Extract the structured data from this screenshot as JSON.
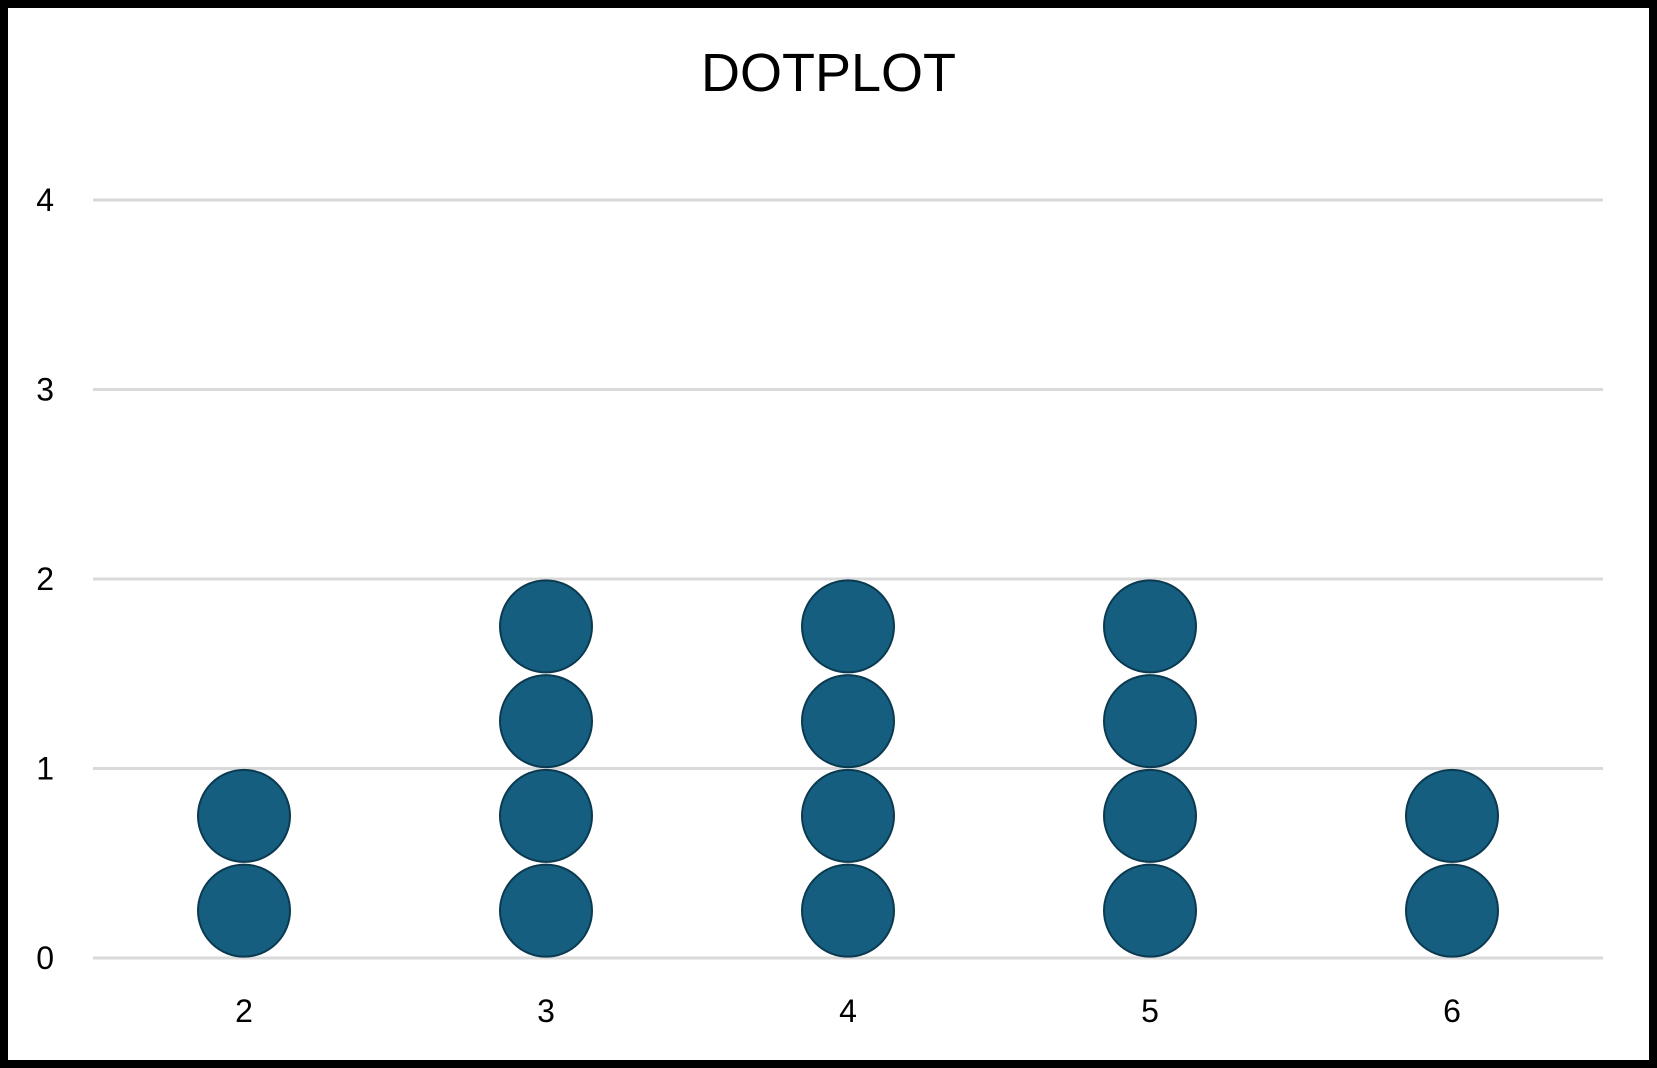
{
  "chart_data": {
    "type": "dotplot",
    "title": "DOTPLOT",
    "xlabel": "",
    "ylabel": "",
    "categories": [
      "2",
      "3",
      "4",
      "5",
      "6"
    ],
    "values": [
      2,
      4,
      4,
      4,
      2
    ],
    "ylim": [
      0,
      4
    ],
    "yticks": [
      "0",
      "1",
      "2",
      "3",
      "4"
    ],
    "grid": true,
    "colors": {
      "dot": "#155e80",
      "dot_edge": "#0b3a50",
      "grid": "#d9d9d9"
    }
  }
}
